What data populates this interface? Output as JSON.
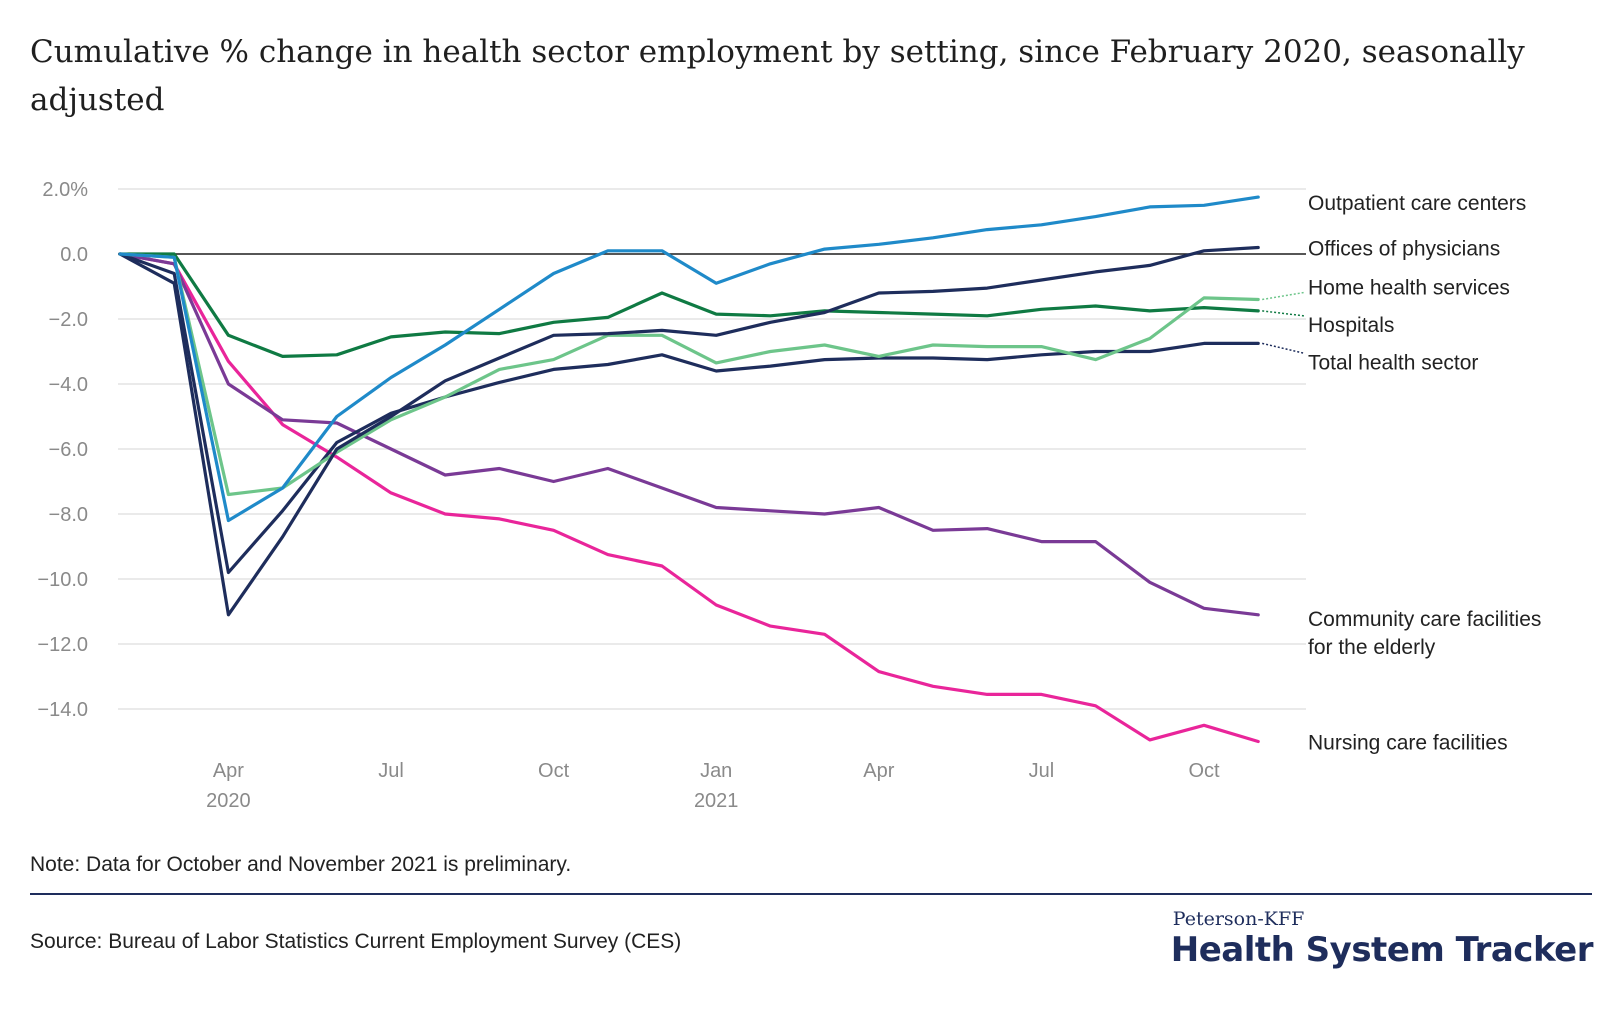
{
  "title": "Cumulative % change in health sector employment by setting, since February 2020, seasonally adjusted",
  "note": "Note: Data for October and November 2021 is preliminary.",
  "source": "Source: Bureau of Labor Statistics Current Employment Survey (CES)",
  "logo": {
    "small": "Peterson-KFF",
    "big": "Health System Tracker"
  },
  "chart_data": {
    "type": "line",
    "title": "Cumulative % change in health sector employment by setting, since February 2020, seasonally adjusted",
    "xlabel": "",
    "ylabel": "",
    "ylim": [
      -15.4,
      2.0
    ],
    "yticks": [
      2,
      0,
      -2,
      -4,
      -6,
      -8,
      -10,
      -12,
      -14
    ],
    "ytick_labels": [
      "2.0%",
      "0.0",
      "−2.0",
      "−4.0",
      "−6.0",
      "−8.0",
      "−10.0",
      "−12.0",
      "−14.0"
    ],
    "x": [
      "Feb 2020",
      "Mar 2020",
      "Apr 2020",
      "May 2020",
      "Jun 2020",
      "Jul 2020",
      "Aug 2020",
      "Sep 2020",
      "Oct 2020",
      "Nov 2020",
      "Dec 2020",
      "Jan 2021",
      "Feb 2021",
      "Mar 2021",
      "Apr 2021",
      "May 2021",
      "Jun 2021",
      "Jul 2021",
      "Aug 2021",
      "Sep 2021",
      "Oct 2021",
      "Nov 2021"
    ],
    "xticks": [
      {
        "index": 2,
        "label": "Apr",
        "sublabel": "2020"
      },
      {
        "index": 5,
        "label": "Jul",
        "sublabel": ""
      },
      {
        "index": 8,
        "label": "Oct",
        "sublabel": ""
      },
      {
        "index": 11,
        "label": "Jan",
        "sublabel": "2021"
      },
      {
        "index": 14,
        "label": "Apr",
        "sublabel": ""
      },
      {
        "index": 17,
        "label": "Jul",
        "sublabel": ""
      },
      {
        "index": 20,
        "label": "Oct",
        "sublabel": ""
      }
    ],
    "zero_line": true,
    "series": [
      {
        "name": "Outpatient care centers",
        "color": "#1f8ac9",
        "values": [
          0,
          -0.1,
          -8.2,
          -7.2,
          -5.0,
          -3.8,
          -2.8,
          -1.7,
          -0.6,
          0.1,
          0.1,
          -0.9,
          -0.3,
          0.15,
          0.3,
          0.5,
          0.75,
          0.9,
          1.15,
          1.45,
          1.5,
          1.75
        ]
      },
      {
        "name": "Offices of physicians",
        "color": "#1e2d5c",
        "values": [
          0,
          -0.9,
          -11.1,
          -8.7,
          -6.0,
          -5.0,
          -3.9,
          -3.2,
          -2.5,
          -2.45,
          -2.35,
          -2.5,
          -2.1,
          -1.8,
          -1.2,
          -1.15,
          -1.05,
          -0.8,
          -0.55,
          -0.35,
          0.1,
          0.2
        ]
      },
      {
        "name": "Home health services",
        "color": "#6dc58a",
        "values": [
          0,
          -0.1,
          -7.4,
          -7.2,
          -6.1,
          -5.1,
          -4.4,
          -3.55,
          -3.25,
          -2.5,
          -2.5,
          -3.35,
          -3.0,
          -2.8,
          -3.15,
          -2.8,
          -2.85,
          -2.85,
          -3.25,
          -2.6,
          -1.35,
          -1.4
        ]
      },
      {
        "name": "Hospitals",
        "color": "#0f7a43",
        "values": [
          0,
          0,
          -2.5,
          -3.15,
          -3.1,
          -2.55,
          -2.4,
          -2.45,
          -2.1,
          -1.95,
          -1.2,
          -1.85,
          -1.9,
          -1.75,
          -1.8,
          -1.85,
          -1.9,
          -1.7,
          -1.6,
          -1.75,
          -1.65,
          -1.75
        ]
      },
      {
        "name": "Total health sector",
        "color": "#1e2d5c",
        "values": [
          0,
          -0.6,
          -9.8,
          -7.9,
          -5.8,
          -4.9,
          -4.4,
          -3.95,
          -3.55,
          -3.4,
          -3.1,
          -3.6,
          -3.45,
          -3.25,
          -3.2,
          -3.2,
          -3.25,
          -3.1,
          -3.0,
          -3.0,
          -2.75,
          -2.75
        ]
      },
      {
        "name": "Community care facilities for the elderly",
        "color": "#7a3a96",
        "values": [
          0,
          -0.3,
          -4.0,
          -5.1,
          -5.2,
          -6.0,
          -6.8,
          -6.6,
          -7.0,
          -6.6,
          -7.2,
          -7.8,
          -7.9,
          -8.0,
          -7.8,
          -8.5,
          -8.45,
          -8.85,
          -8.85,
          -10.1,
          -10.9,
          -11.1
        ]
      },
      {
        "name": "Nursing care facilities",
        "color": "#e9259a",
        "values": [
          0,
          -0.3,
          -3.3,
          -5.25,
          -6.25,
          -7.35,
          -8.0,
          -8.15,
          -8.5,
          -9.25,
          -9.6,
          -10.8,
          -11.45,
          -11.7,
          -12.85,
          -13.3,
          -13.55,
          -13.55,
          -13.9,
          -14.95,
          -14.5,
          -15.0
        ]
      }
    ],
    "labels": [
      {
        "series": "Outpatient care centers",
        "lines": [
          "Outpatient care centers"
        ],
        "y": 1.6
      },
      {
        "series": "Offices of physicians",
        "lines": [
          "Offices of physicians"
        ],
        "y": 0.2
      },
      {
        "series": "Home health services",
        "lines": [
          "Home health services"
        ],
        "y": -1.0
      },
      {
        "series": "Hospitals",
        "lines": [
          "Hospitals"
        ],
        "y": -2.15
      },
      {
        "series": "Total health sector",
        "lines": [
          "Total health sector"
        ],
        "y": -3.3
      },
      {
        "series": "Community care facilities for the elderly",
        "lines": [
          "Community care facilities",
          "for the elderly"
        ],
        "y": -11.2
      },
      {
        "series": "Nursing care facilities",
        "lines": [
          "Nursing care facilities"
        ],
        "y": -15.0
      }
    ]
  }
}
